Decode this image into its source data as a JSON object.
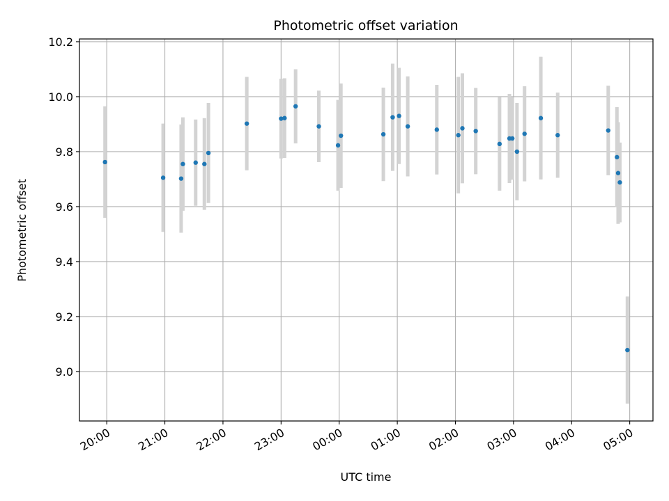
{
  "chart_data": {
    "type": "scatter",
    "title": "Photometric offset variation",
    "xlabel": "UTC time",
    "ylabel": "Photometric offset",
    "x_unit": "hours since 20:00 UTC (continuing past midnight)",
    "xlim": [
      -0.47,
      9.4
    ],
    "ylim": [
      8.82,
      10.21
    ],
    "x_ticks": [
      {
        "value": 0,
        "label": "20:00"
      },
      {
        "value": 1,
        "label": "21:00"
      },
      {
        "value": 2,
        "label": "22:00"
      },
      {
        "value": 3,
        "label": "23:00"
      },
      {
        "value": 4,
        "label": "00:00"
      },
      {
        "value": 5,
        "label": "01:00"
      },
      {
        "value": 6,
        "label": "02:00"
      },
      {
        "value": 7,
        "label": "03:00"
      },
      {
        "value": 8,
        "label": "04:00"
      },
      {
        "value": 9,
        "label": "05:00"
      }
    ],
    "y_ticks": [
      {
        "value": 9.0,
        "label": "9.0"
      },
      {
        "value": 9.2,
        "label": "9.2"
      },
      {
        "value": 9.4,
        "label": "9.4"
      },
      {
        "value": 9.6,
        "label": "9.6"
      },
      {
        "value": 9.8,
        "label": "9.8"
      },
      {
        "value": 10.0,
        "label": "10.0"
      },
      {
        "value": 10.2,
        "label": "10.2"
      }
    ],
    "grid": true,
    "colors": {
      "point": "#1f77b4",
      "errorbar": "#d3d3d3",
      "grid": "#b0b0b0"
    },
    "series": [
      {
        "points": [
          {
            "x": -0.03,
            "y": 9.762,
            "err": 0.203
          },
          {
            "x": 0.97,
            "y": 9.705,
            "err": 0.197
          },
          {
            "x": 1.28,
            "y": 9.702,
            "err": 0.197
          },
          {
            "x": 1.31,
            "y": 9.755,
            "err": 0.17
          },
          {
            "x": 1.53,
            "y": 9.76,
            "err": 0.157
          },
          {
            "x": 1.68,
            "y": 9.755,
            "err": 0.167
          },
          {
            "x": 1.75,
            "y": 9.795,
            "err": 0.182
          },
          {
            "x": 2.41,
            "y": 9.902,
            "err": 0.17
          },
          {
            "x": 3.0,
            "y": 9.92,
            "err": 0.145
          },
          {
            "x": 3.06,
            "y": 9.922,
            "err": 0.145
          },
          {
            "x": 3.25,
            "y": 9.965,
            "err": 0.135
          },
          {
            "x": 3.65,
            "y": 9.892,
            "err": 0.13
          },
          {
            "x": 3.98,
            "y": 9.823,
            "err": 0.165
          },
          {
            "x": 4.03,
            "y": 9.858,
            "err": 0.19
          },
          {
            "x": 4.76,
            "y": 9.863,
            "err": 0.17
          },
          {
            "x": 4.92,
            "y": 9.925,
            "err": 0.195
          },
          {
            "x": 5.03,
            "y": 9.93,
            "err": 0.175
          },
          {
            "x": 5.18,
            "y": 9.892,
            "err": 0.182
          },
          {
            "x": 5.68,
            "y": 9.88,
            "err": 0.163
          },
          {
            "x": 6.05,
            "y": 9.86,
            "err": 0.212
          },
          {
            "x": 6.12,
            "y": 9.885,
            "err": 0.2
          },
          {
            "x": 6.35,
            "y": 9.875,
            "err": 0.157
          },
          {
            "x": 6.76,
            "y": 9.828,
            "err": 0.17
          },
          {
            "x": 6.93,
            "y": 9.848,
            "err": 0.162
          },
          {
            "x": 6.98,
            "y": 9.848,
            "err": 0.15
          },
          {
            "x": 7.06,
            "y": 9.8,
            "err": 0.177
          },
          {
            "x": 7.19,
            "y": 9.865,
            "err": 0.173
          },
          {
            "x": 7.47,
            "y": 9.922,
            "err": 0.223
          },
          {
            "x": 7.76,
            "y": 9.86,
            "err": 0.155
          },
          {
            "x": 8.63,
            "y": 9.877,
            "err": 0.163
          },
          {
            "x": 8.78,
            "y": 9.78,
            "err": 0.182
          },
          {
            "x": 8.8,
            "y": 9.722,
            "err": 0.185
          },
          {
            "x": 8.83,
            "y": 9.688,
            "err": 0.145
          },
          {
            "x": 8.96,
            "y": 9.078,
            "err": 0.195
          }
        ]
      }
    ]
  }
}
